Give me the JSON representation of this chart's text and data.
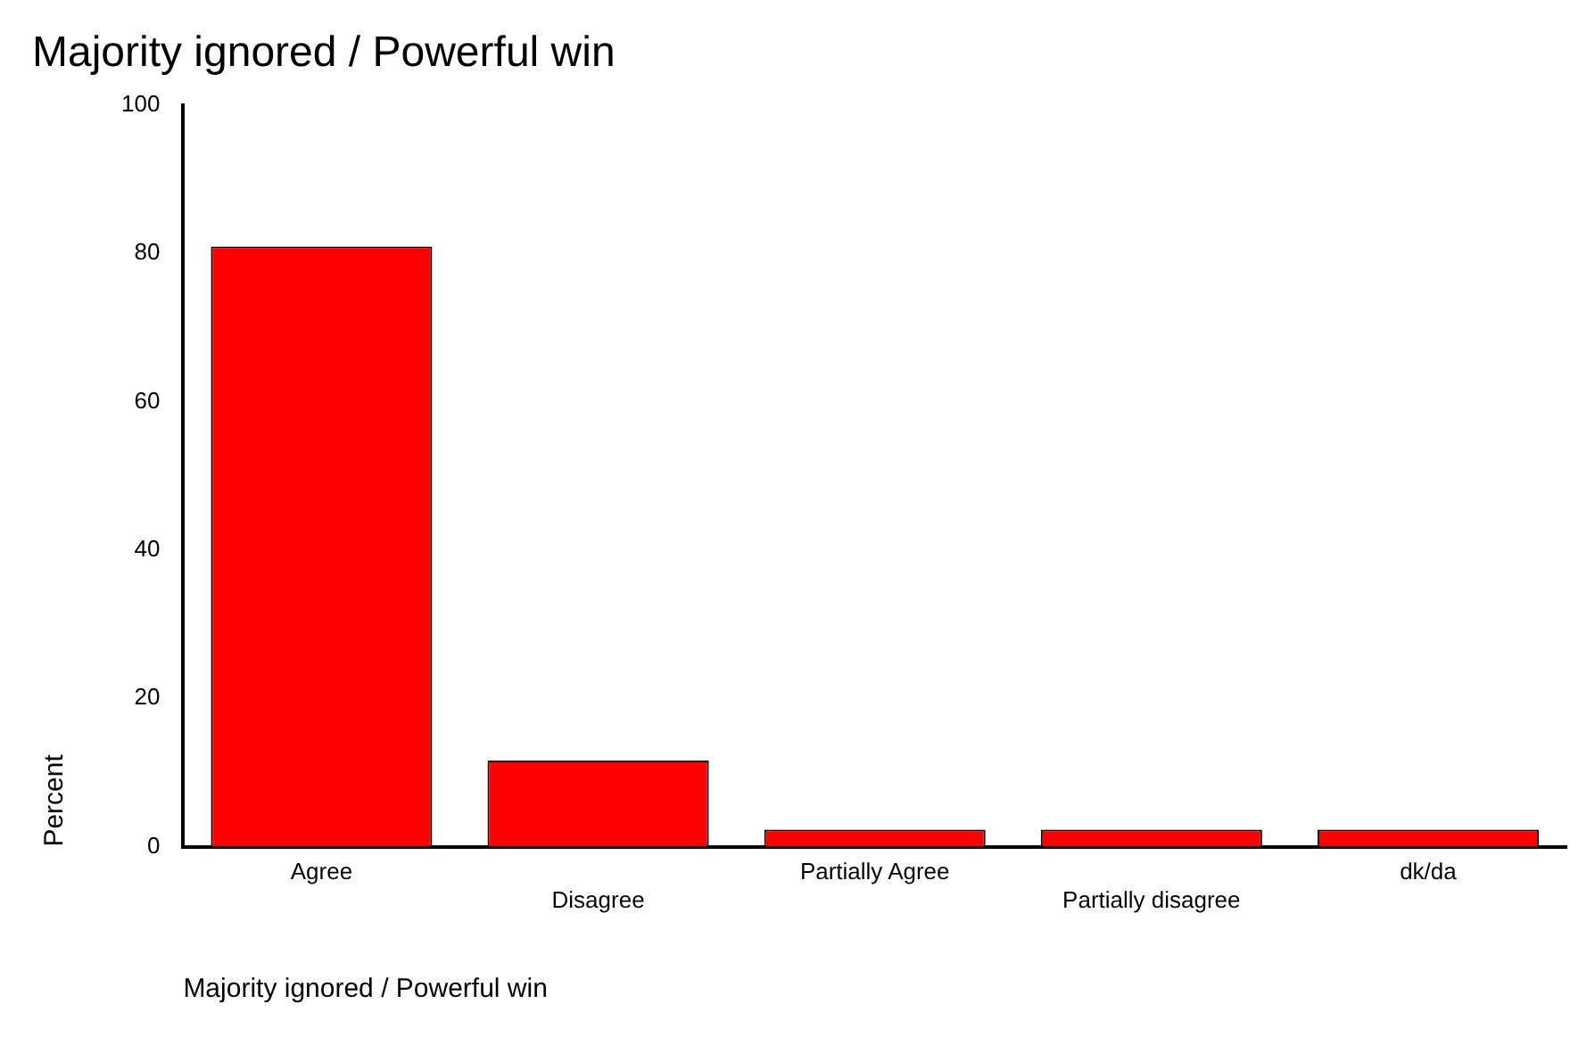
{
  "chart_data": {
    "type": "bar",
    "title": "Majority ignored / Powerful win",
    "xlabel": "Majority ignored / Powerful win",
    "ylabel": "Percent",
    "categories": [
      "Agree",
      "Disagree",
      "Partially Agree",
      "Partially disagree",
      "dk/da"
    ],
    "values": [
      80.9,
      11.6,
      2.3,
      2.3,
      2.3
    ],
    "color": "#ff0000",
    "ylim": [
      0,
      100
    ],
    "yticks": [
      0,
      20,
      40,
      60,
      80,
      100
    ],
    "grid": false,
    "legend": false
  }
}
